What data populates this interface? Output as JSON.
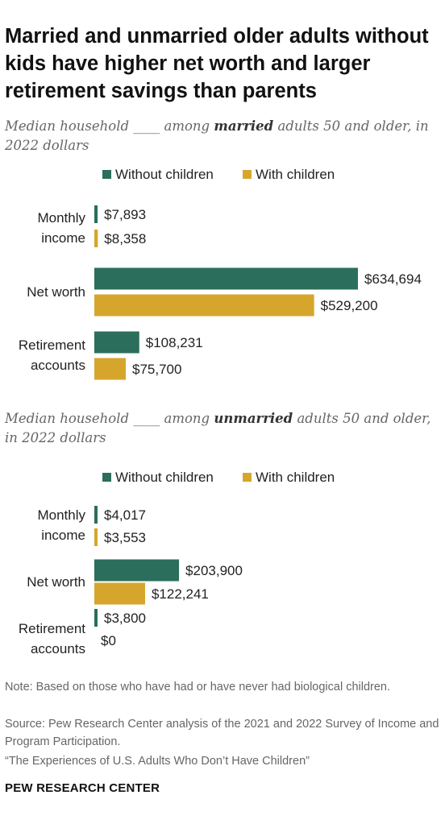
{
  "title": "Married and unmarried older adults without kids have higher net worth and larger retirement savings than parents",
  "colors": {
    "without_children": "#2b6e5c",
    "with_children": "#d6a62c"
  },
  "chart_data": [
    {
      "type": "bar",
      "subtitle_pre": "Median household ____ among ",
      "subtitle_bold": "married",
      "subtitle_post": " adults 50 and older, in 2022 dollars",
      "legend": [
        "Without children",
        "With children"
      ],
      "categories": [
        "Monthly income",
        "Net worth",
        "Retirement accounts"
      ],
      "series": [
        {
          "name": "Without children",
          "values": [
            7893,
            634694,
            108231
          ],
          "labels": [
            "$7,893",
            "$634,694",
            "$108,231"
          ]
        },
        {
          "name": "With children",
          "values": [
            8358,
            529200,
            75700
          ],
          "labels": [
            "$8,358",
            "$529,200",
            "$75,700"
          ]
        }
      ]
    },
    {
      "type": "bar",
      "subtitle_pre": "Median household ____ among ",
      "subtitle_bold": "unmarried",
      "subtitle_post": " adults 50 and older, in 2022 dollars",
      "legend": [
        "Without children",
        "With children"
      ],
      "categories": [
        "Monthly income",
        "Net worth",
        "Retirement accounts"
      ],
      "series": [
        {
          "name": "Without children",
          "values": [
            4017,
            203900,
            3800
          ],
          "labels": [
            "$4,017",
            "$203,900",
            "$3,800"
          ]
        },
        {
          "name": "With children",
          "values": [
            3553,
            122241,
            0
          ],
          "labels": [
            "$3,553",
            "$122,241",
            "$0"
          ]
        }
      ]
    }
  ],
  "notes": {
    "note": "Note: Based on those who have had or have never had biological children.",
    "source": "Source: Pew Research Center analysis of the 2021 and 2022 Survey of Income and Program Participation.",
    "report": "“The Experiences of U.S. Adults Who Don’t Have Children”"
  },
  "footer": "PEW RESEARCH CENTER"
}
